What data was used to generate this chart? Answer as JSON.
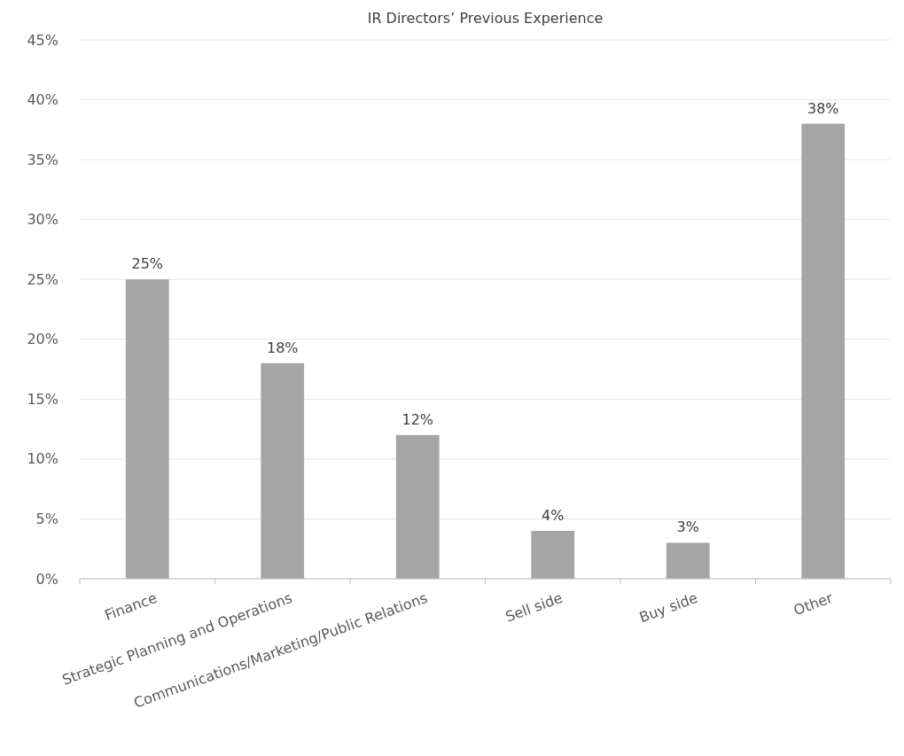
{
  "chart_data": {
    "type": "bar",
    "title": "IR Directors’ Previous Experience",
    "categories": [
      "Finance",
      "Strategic Planning and Operations",
      "Communications/Marketing/Public Relations",
      "Sell side",
      "Buy side",
      "Other"
    ],
    "values": [
      25,
      18,
      12,
      4,
      3,
      38
    ],
    "color": "#a5a5a5",
    "ylim": [
      0,
      45
    ],
    "yticks": [
      {
        "value": 0,
        "label": "0%"
      },
      {
        "value": 5,
        "label": "5%"
      },
      {
        "value": 10,
        "label": "10%"
      },
      {
        "value": 15,
        "label": "15%"
      },
      {
        "value": 20,
        "label": "20%"
      },
      {
        "value": 25,
        "label": "25%"
      },
      {
        "value": 30,
        "label": "30%"
      },
      {
        "value": 35,
        "label": "35%"
      },
      {
        "value": 40,
        "label": "40%"
      },
      {
        "value": 45,
        "label": "45%"
      }
    ],
    "value_labels": [
      "25%",
      "18%",
      "12%",
      "4%",
      "3%",
      "38%"
    ],
    "grid": "y"
  }
}
